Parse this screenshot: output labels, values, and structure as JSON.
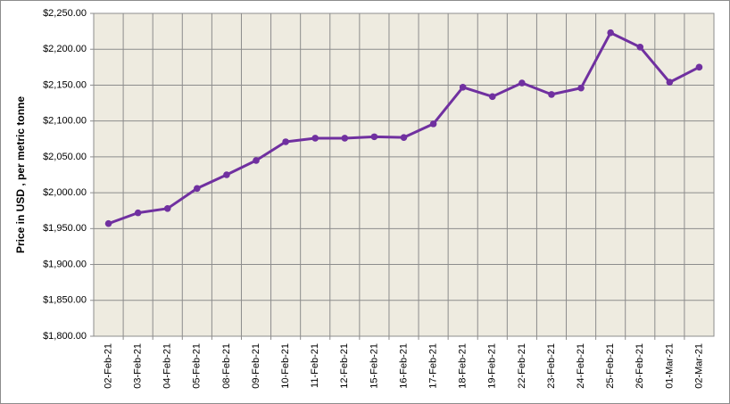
{
  "chart_data": {
    "type": "line",
    "y_axis_title": "Price in USD , per metric tonne",
    "categories": [
      "02-Feb-21",
      "03-Feb-21",
      "04-Feb-21",
      "05-Feb-21",
      "08-Feb-21",
      "09-Feb-21",
      "10-Feb-21",
      "11-Feb-21",
      "12-Feb-21",
      "15-Feb-21",
      "16-Feb-21",
      "17-Feb-21",
      "18-Feb-21",
      "19-Feb-21",
      "22-Feb-21",
      "23-Feb-21",
      "24-Feb-21",
      "25-Feb-21",
      "26-Feb-21",
      "01-Mar-21",
      "02-Mar-21"
    ],
    "series": [
      {
        "color": "#7030a0",
        "values": [
          1957,
          1972,
          1978,
          2006,
          2025,
          2045,
          2071,
          2076,
          2076,
          2078,
          2077,
          2096,
          2147,
          2134,
          2153,
          2137,
          2146,
          2223,
          2203,
          2154,
          2175
        ]
      }
    ],
    "ylim": [
      1800,
      2250
    ],
    "yticks": [
      {
        "value": 1800,
        "label": "$1,800.00"
      },
      {
        "value": 1850,
        "label": "$1,850.00"
      },
      {
        "value": 1900,
        "label": "$1,900.00"
      },
      {
        "value": 1950,
        "label": "$1,950.00"
      },
      {
        "value": 2000,
        "label": "$2,000.00"
      },
      {
        "value": 2050,
        "label": "$2,050.00"
      },
      {
        "value": 2100,
        "label": "$2,100.00"
      },
      {
        "value": 2150,
        "label": "$2,150.00"
      },
      {
        "value": 2200,
        "label": "$2,200.00"
      },
      {
        "value": 2250,
        "label": "$2,250.00"
      }
    ],
    "grid": true
  }
}
